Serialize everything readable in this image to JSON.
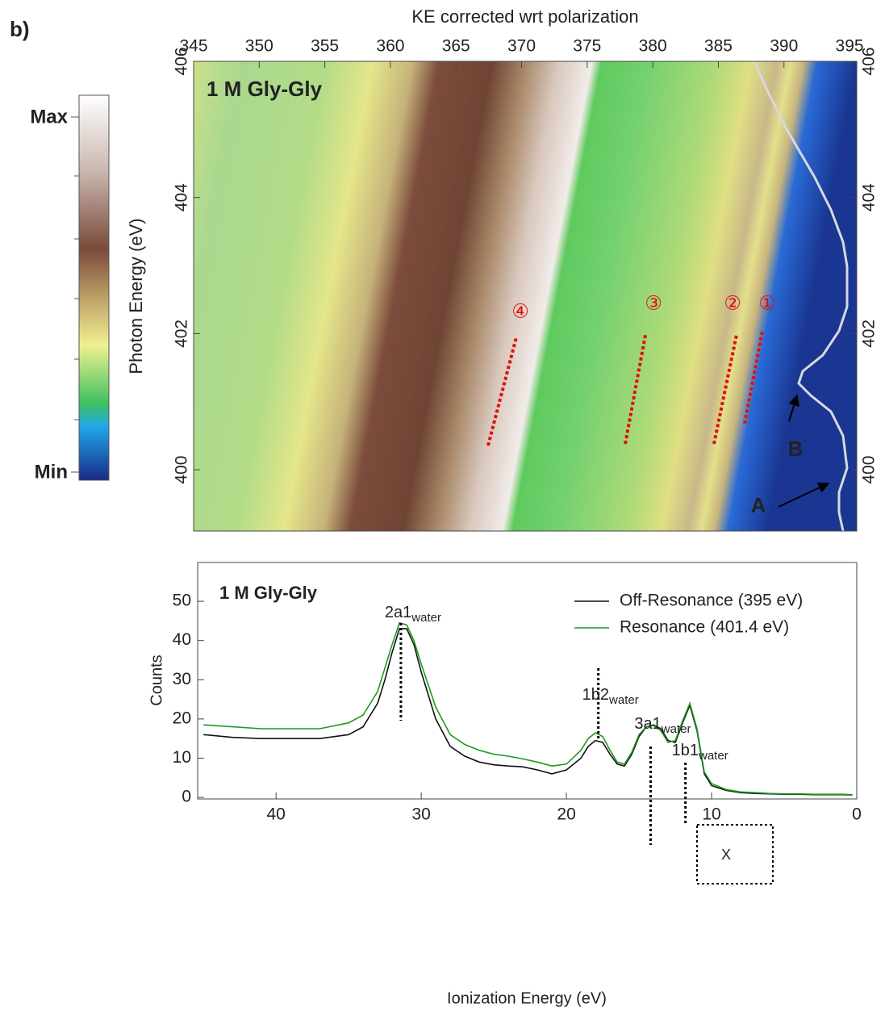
{
  "figure_label": "b)",
  "chart_data": [
    {
      "type": "heatmap",
      "x_label": "KE corrected wrt polarization",
      "y_label": "Photon Energy (eV)",
      "xlim": [
        345,
        395.55
      ],
      "xticks": [
        345,
        350,
        355,
        360,
        365,
        370,
        375,
        380,
        385,
        390,
        395
      ],
      "ylim": [
        399.1,
        406
      ],
      "yticks": [
        400,
        402,
        404,
        406
      ],
      "colorbar": {
        "max_label": "Max",
        "min_label": "Min"
      },
      "panel_label": "1 M Gly-Gly",
      "peak_labels": [
        "④",
        "③",
        "②",
        "①"
      ],
      "arrow_labels": [
        "B",
        "A"
      ]
    },
    {
      "type": "line",
      "panel_label": "1 M Gly-Gly",
      "x_label": "Ionization Energy (eV)",
      "y_label": "Counts",
      "xlim": [
        45.4,
        0
      ],
      "xticks": [
        40,
        30,
        20,
        10,
        0
      ],
      "ylim": [
        -0.4,
        59.9
      ],
      "yticks": [
        0,
        10,
        20,
        30,
        40,
        50
      ],
      "x": [
        45,
        43,
        41,
        39,
        37,
        35,
        34,
        33,
        32.5,
        32,
        31.5,
        31,
        30.5,
        30,
        29,
        28,
        27,
        26,
        25,
        24,
        23,
        22,
        21,
        20,
        19,
        18.5,
        18,
        17.5,
        17,
        16.5,
        16,
        15.5,
        15,
        14.5,
        14,
        13.5,
        13,
        12.5,
        12,
        11.5,
        11,
        10.5,
        10,
        9,
        8,
        7,
        6,
        5,
        4,
        3,
        2,
        1,
        0.3
      ],
      "series": [
        {
          "name": "Off-Resonance (395 eV)",
          "color": "#111111",
          "values": [
            16,
            15.3,
            15,
            15,
            15,
            16,
            18,
            24,
            30,
            37,
            43,
            43,
            39,
            32,
            20,
            13,
            10.5,
            9,
            8.3,
            8,
            7.8,
            7,
            6,
            7,
            10,
            13,
            14.5,
            14,
            11,
            8.5,
            8,
            11,
            15.5,
            18,
            18.5,
            17.5,
            14.5,
            14,
            19,
            23.5,
            17,
            6,
            3,
            1.8,
            1.2,
            1,
            0.9,
            0.8,
            0.8,
            0.7,
            0.7,
            0.7,
            0.6
          ]
        },
        {
          "name": "Resonance (401.4 eV)",
          "color": "#1f9a1f",
          "values": [
            18.5,
            18,
            17.5,
            17.5,
            17.5,
            19,
            21,
            27,
            33,
            39,
            44.5,
            44,
            40,
            34,
            23,
            16,
            13.5,
            12,
            11,
            10.5,
            9.8,
            9,
            8,
            8.5,
            12,
            15,
            16.5,
            15.5,
            12,
            9,
            8.5,
            11.5,
            16,
            18,
            18.3,
            17,
            14,
            14.5,
            19.5,
            24,
            17.5,
            6.5,
            3.5,
            2,
            1.4,
            1.2,
            1,
            0.9,
            0.9,
            0.8,
            0.8,
            0.8,
            0.7
          ]
        }
      ],
      "annotations": [
        {
          "label": "2a1",
          "sub": "water",
          "x": 31.4
        },
        {
          "label": "1b2",
          "sub": "water",
          "x": 17.8
        },
        {
          "label": "3a1",
          "sub": "water",
          "x": 14.2
        },
        {
          "label": "1b1",
          "sub": "water",
          "x": 11.8
        }
      ],
      "box_label": "X"
    }
  ]
}
